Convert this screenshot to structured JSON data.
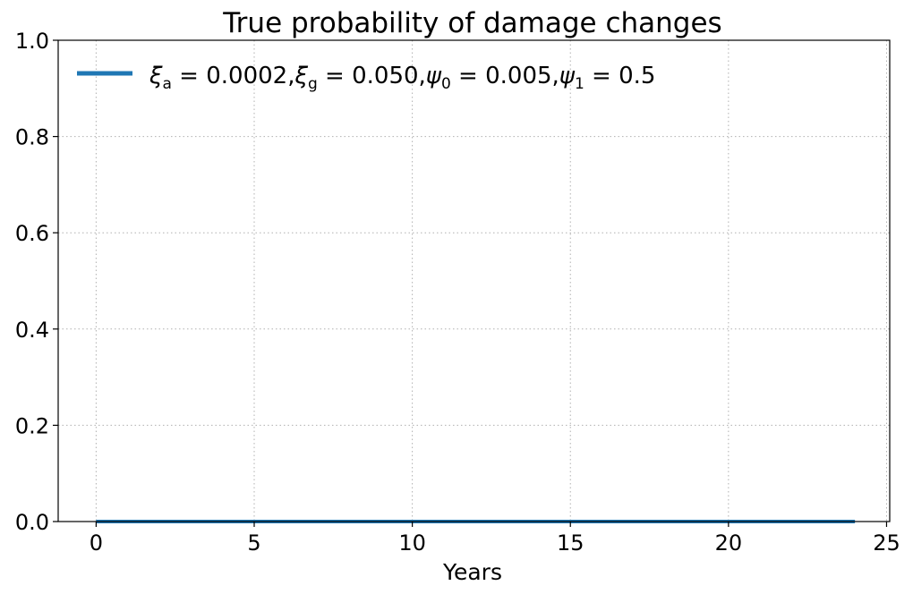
{
  "chart_data": {
    "type": "line",
    "title": "True probability of damage changes",
    "xlabel": "Years",
    "ylabel": "",
    "xlim": [
      -1.2,
      25.1
    ],
    "ylim": [
      0.0,
      1.0
    ],
    "xticks": [
      0,
      5,
      10,
      15,
      20,
      25
    ],
    "xtick_labels": [
      "0",
      "5",
      "10",
      "15",
      "20",
      "25"
    ],
    "yticks": [
      0.0,
      0.2,
      0.4,
      0.6,
      0.8,
      1.0
    ],
    "ytick_labels": [
      "0.0",
      "0.2",
      "0.4",
      "0.6",
      "0.8",
      "1.0"
    ],
    "grid": true,
    "legend_position": "top-left",
    "series": [
      {
        "name": "ξ_a = 0.0002, ξ_g = 0.050, ψ_0 = 0.005, ψ_1 = 0.5",
        "color": "#1f77b4",
        "x": [
          0,
          24
        ],
        "y": [
          0.0,
          0.0
        ]
      }
    ]
  }
}
